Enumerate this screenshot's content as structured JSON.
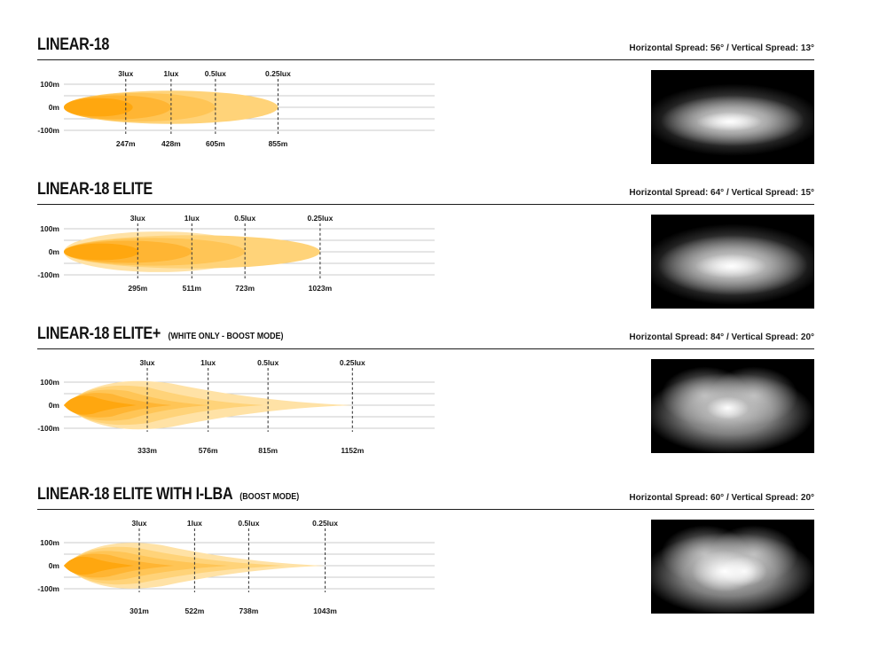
{
  "axis": {
    "y_ticks": [
      "100m",
      "0m",
      "-100m"
    ],
    "lux_labels": [
      "3lux",
      "1lux",
      "0.5lux",
      "0.25lux"
    ]
  },
  "colors": {
    "beam_palette": {
      "pale": "#FFE2A6",
      "light": "#FFD379",
      "medium": "#FFC556",
      "dark": "#FFB533",
      "darkest": "#FFA70F"
    },
    "grid": "#CBCBCB",
    "dash": "#3E3E3E",
    "rule": "#1C1C1C",
    "text": "#161616",
    "photo_background": "#000000"
  },
  "sections": [
    {
      "title": "LINEAR-18",
      "suffix": "",
      "spread": "Horizontal Spread: 56°  /  Vertical Spread: 13°",
      "beam_style": "ellipse",
      "photo_style": "flat-ellipse",
      "distances_m": [
        247,
        428,
        605,
        855
      ],
      "distance_labels": [
        "247m",
        "428m",
        "605m",
        "855m"
      ]
    },
    {
      "title": "LINEAR-18 ELITE",
      "suffix": "",
      "spread": "Horizontal Spread: 64°  /  Vertical Spread: 15°",
      "beam_style": "ellipse",
      "photo_style": "soft-ellipse",
      "distances_m": [
        295,
        511,
        723,
        1023
      ],
      "distance_labels": [
        "295m",
        "511m",
        "723m",
        "1023m"
      ]
    },
    {
      "title": "LINEAR-18 ELITE+",
      "suffix": "(WHITE ONLY - BOOST MODE)",
      "spread": "Horizontal Spread: 84°  /  Vertical Spread: 20°",
      "beam_style": "dart",
      "photo_style": "twin-lobe",
      "distances_m": [
        333,
        576,
        815,
        1152
      ],
      "distance_labels": [
        "333m",
        "576m",
        "815m",
        "1152m"
      ]
    },
    {
      "title": "LINEAR-18 ELITE WITH I-LBA",
      "suffix": "(BOOST MODE)",
      "spread": "Horizontal Spread: 60°  /  Vertical Spread: 20°",
      "beam_style": "dart",
      "photo_style": "twin-lobe-bright",
      "distances_m": [
        301,
        522,
        738,
        1043
      ],
      "distance_labels": [
        "301m",
        "522m",
        "738m",
        "1043m"
      ]
    }
  ],
  "chart_data": [
    {
      "type": "area",
      "title": "LINEAR-18",
      "lux_levels": [
        3,
        1,
        0.5,
        0.25
      ],
      "lux_labels": [
        "3lux",
        "1lux",
        "0.5lux",
        "0.25lux"
      ],
      "distances_m": [
        247,
        428,
        605,
        855
      ],
      "distance_labels": [
        "247m",
        "428m",
        "605m",
        "855m"
      ],
      "y_axis": {
        "ticks": [
          "100m",
          "0m",
          "-100m"
        ],
        "range_m": [
          -100,
          100
        ]
      },
      "horizontal_spread_deg": 56,
      "vertical_spread_deg": 13
    },
    {
      "type": "area",
      "title": "LINEAR-18 ELITE",
      "lux_levels": [
        3,
        1,
        0.5,
        0.25
      ],
      "lux_labels": [
        "3lux",
        "1lux",
        "0.5lux",
        "0.25lux"
      ],
      "distances_m": [
        295,
        511,
        723,
        1023
      ],
      "distance_labels": [
        "295m",
        "511m",
        "723m",
        "1023m"
      ],
      "y_axis": {
        "ticks": [
          "100m",
          "0m",
          "-100m"
        ],
        "range_m": [
          -100,
          100
        ]
      },
      "horizontal_spread_deg": 64,
      "vertical_spread_deg": 15
    },
    {
      "type": "area",
      "title": "LINEAR-18 ELITE+ (WHITE ONLY - BOOST MODE)",
      "lux_levels": [
        3,
        1,
        0.5,
        0.25
      ],
      "lux_labels": [
        "3lux",
        "1lux",
        "0.5lux",
        "0.25lux"
      ],
      "distances_m": [
        333,
        576,
        815,
        1152
      ],
      "distance_labels": [
        "333m",
        "576m",
        "815m",
        "1152m"
      ],
      "y_axis": {
        "ticks": [
          "100m",
          "0m",
          "-100m"
        ],
        "range_m": [
          -100,
          100
        ]
      },
      "horizontal_spread_deg": 84,
      "vertical_spread_deg": 20
    },
    {
      "type": "area",
      "title": "LINEAR-18 ELITE WITH I-LBA (BOOST MODE)",
      "lux_levels": [
        3,
        1,
        0.5,
        0.25
      ],
      "lux_labels": [
        "3lux",
        "1lux",
        "0.5lux",
        "0.25lux"
      ],
      "distances_m": [
        301,
        522,
        738,
        1043
      ],
      "distance_labels": [
        "301m",
        "522m",
        "738m",
        "1043m"
      ],
      "y_axis": {
        "ticks": [
          "100m",
          "0m",
          "-100m"
        ],
        "range_m": [
          -100,
          100
        ]
      },
      "horizontal_spread_deg": 60,
      "vertical_spread_deg": 20
    }
  ]
}
